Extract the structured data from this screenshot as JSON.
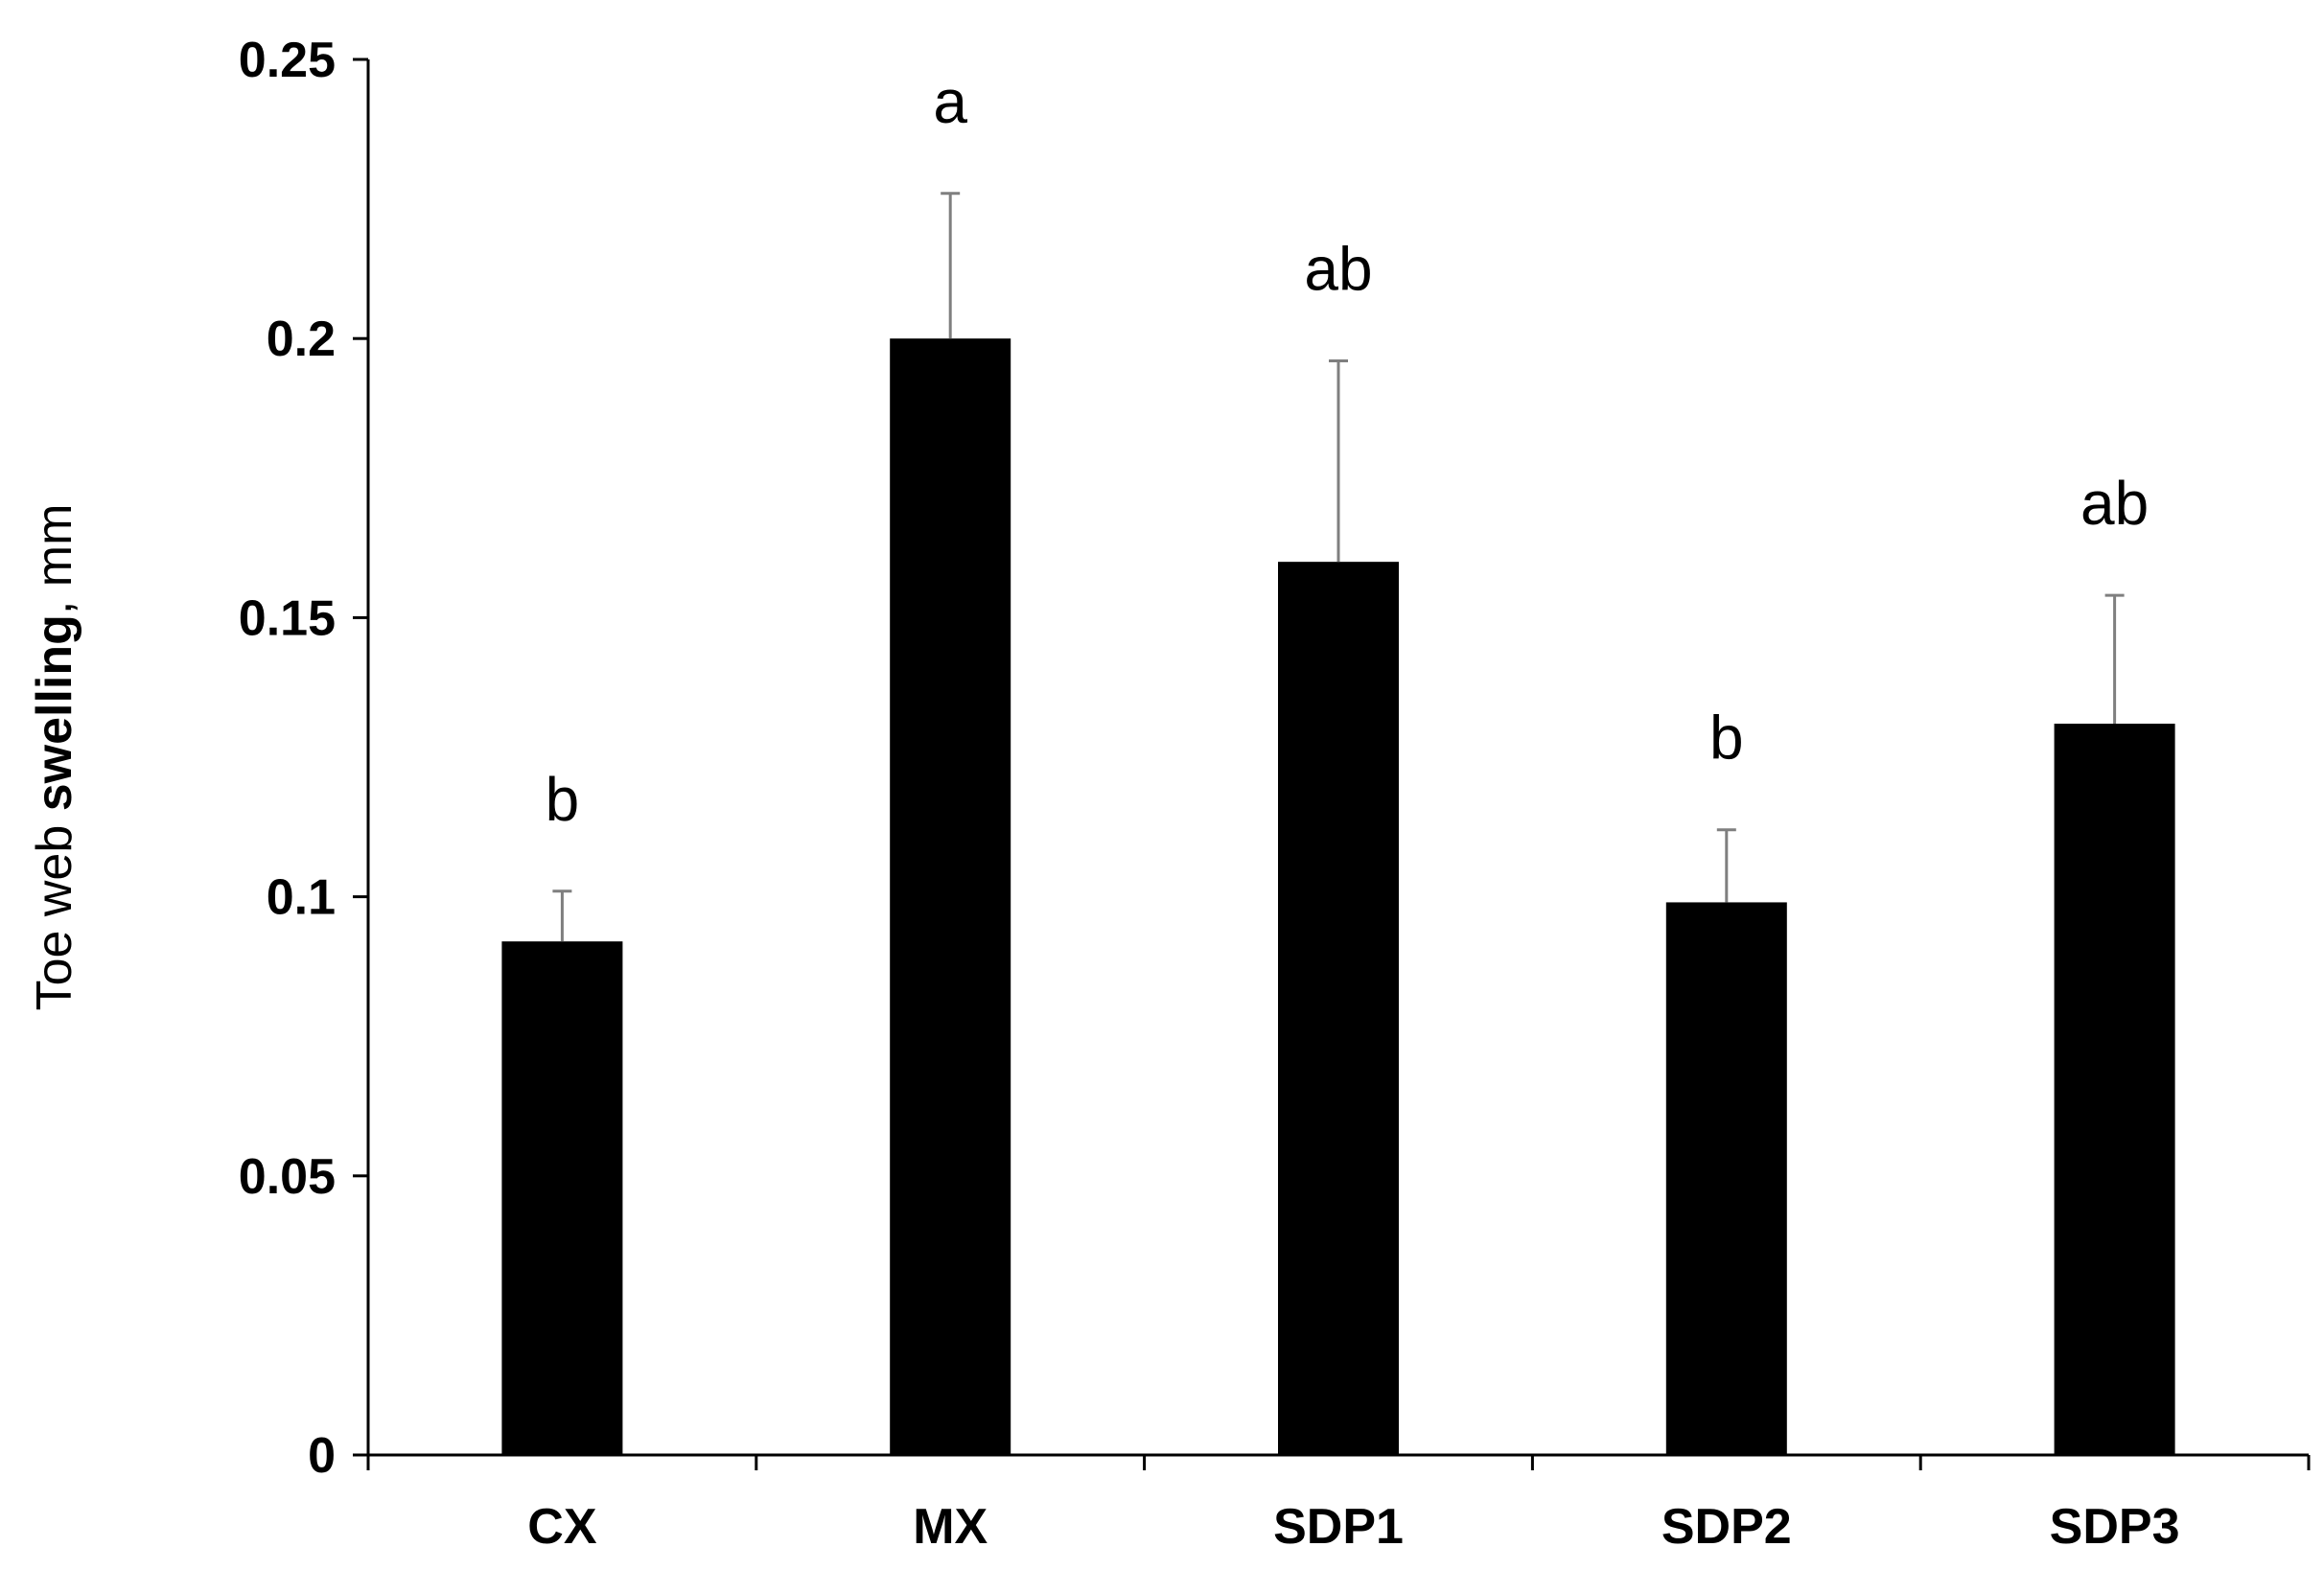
{
  "chart_data": {
    "type": "bar",
    "title": "",
    "xlabel": "",
    "ylabel_parts": [
      "Toe web ",
      "swelling",
      ", mm"
    ],
    "categories": [
      "CX",
      "MX",
      "SDP1",
      "SDP2",
      "SDP3"
    ],
    "values": [
      0.092,
      0.2,
      0.16,
      0.099,
      0.131
    ],
    "error_upper": [
      0.101,
      0.226,
      0.196,
      0.112,
      0.154
    ],
    "significance": [
      "b",
      "a",
      "ab",
      "b",
      "ab"
    ],
    "ylim": [
      0,
      0.25
    ],
    "yticks": [
      0,
      0.05,
      0.1,
      0.15,
      0.2,
      0.25
    ],
    "ytick_labels": [
      "0",
      "0.05",
      "0.1",
      "0.15",
      "0.2",
      "0.25"
    ],
    "grid": false,
    "legend": "none",
    "colors": {
      "bar": "#000000",
      "error_bar": "#7f7f7f",
      "axis": "#000000"
    }
  }
}
